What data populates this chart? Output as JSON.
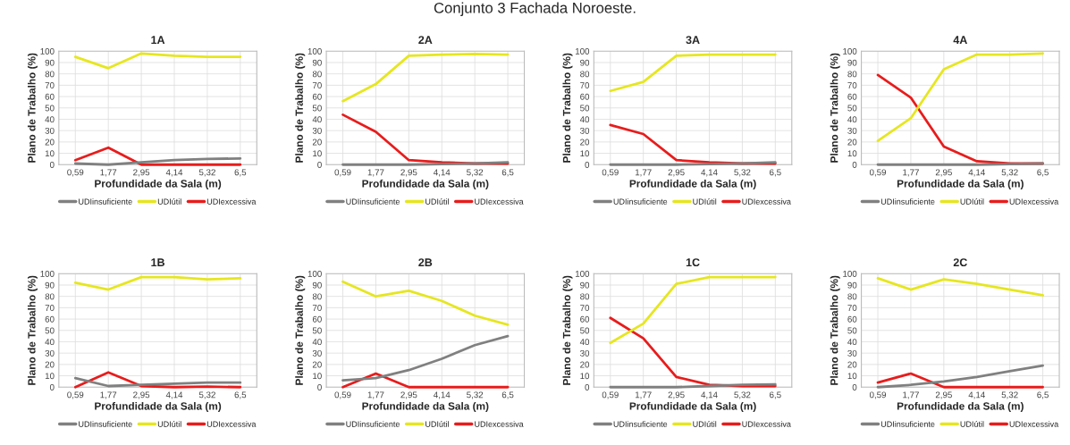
{
  "chart_data": [
    {
      "type": "line",
      "title": "1A",
      "xlabel": "Profundidade da Sala (m)",
      "ylabel": "Plano de Trabalho (%)",
      "annotations": [
        "Conjunto 3 Fachada Noroeste."
      ],
      "categories": [
        "0,59",
        "1,77",
        "2,95",
        "4,14",
        "5,32",
        "6,5"
      ],
      "ylim": [
        0,
        100
      ],
      "yticks": [
        0,
        10,
        20,
        30,
        40,
        50,
        60,
        70,
        80,
        90,
        100
      ],
      "grid": true,
      "legend": "bottom",
      "series": [
        {
          "name": "UDIinsuficiente",
          "color": "#808080",
          "values": [
            1,
            0,
            2,
            4,
            5,
            5.5
          ]
        },
        {
          "name": "UDIútil",
          "color": "#e6e620",
          "values": [
            95,
            85,
            98,
            96,
            95,
            95
          ]
        },
        {
          "name": "UDIexcessiva",
          "color": "#e81c1c",
          "values": [
            4,
            15,
            0,
            0,
            0,
            0
          ]
        }
      ]
    },
    {
      "type": "line",
      "title": "2A",
      "xlabel": "Profundidade da Sala (m)",
      "ylabel": "Plano de Trabalho (%)",
      "categories": [
        "0,59",
        "1,77",
        "2,95",
        "4,14",
        "5,32",
        "6,5"
      ],
      "ylim": [
        0,
        100
      ],
      "yticks": [
        0,
        10,
        20,
        30,
        40,
        50,
        60,
        70,
        80,
        90,
        100
      ],
      "grid": true,
      "legend": "bottom",
      "series": [
        {
          "name": "UDIinsuficiente",
          "color": "#808080",
          "values": [
            0,
            0,
            0,
            0.5,
            1,
            2
          ]
        },
        {
          "name": "UDIútil",
          "color": "#e6e620",
          "values": [
            56,
            71,
            96,
            97,
            97.5,
            97
          ]
        },
        {
          "name": "UDIexcessiva",
          "color": "#e81c1c",
          "values": [
            44,
            29,
            4,
            2,
            1,
            1
          ]
        }
      ]
    },
    {
      "type": "line",
      "title": "3A",
      "xlabel": "Profundidade da Sala (m)",
      "ylabel": "Plano de Trabalho (%)",
      "categories": [
        "0,59",
        "1,77",
        "2,95",
        "4,14",
        "5,32",
        "6,5"
      ],
      "ylim": [
        0,
        100
      ],
      "yticks": [
        0,
        10,
        20,
        30,
        40,
        50,
        60,
        70,
        80,
        90,
        100
      ],
      "grid": true,
      "legend": "bottom",
      "series": [
        {
          "name": "UDIinsuficiente",
          "color": "#808080",
          "values": [
            0,
            0,
            0,
            0.5,
            1,
            2
          ]
        },
        {
          "name": "UDIútil",
          "color": "#e6e620",
          "values": [
            65,
            73,
            96,
            97,
            97,
            97
          ]
        },
        {
          "name": "UDIexcessiva",
          "color": "#e81c1c",
          "values": [
            35,
            27,
            4,
            2,
            1,
            1
          ]
        }
      ]
    },
    {
      "type": "line",
      "title": "4A",
      "xlabel": "Profundidade da Sala (m)",
      "ylabel": "Plano de Trabalho (%)",
      "categories": [
        "0,59",
        "1,77",
        "2,95",
        "4,14",
        "5,32",
        "6,5"
      ],
      "ylim": [
        0,
        100
      ],
      "yticks": [
        0,
        10,
        20,
        30,
        40,
        50,
        60,
        70,
        80,
        90,
        100
      ],
      "grid": true,
      "legend": "bottom",
      "series": [
        {
          "name": "UDIinsuficiente",
          "color": "#808080",
          "values": [
            0,
            0,
            0,
            0,
            0.5,
            1
          ]
        },
        {
          "name": "UDIútil",
          "color": "#e6e620",
          "values": [
            21,
            41,
            84,
            97,
            97,
            98
          ]
        },
        {
          "name": "UDIexcessiva",
          "color": "#e81c1c",
          "values": [
            79,
            59,
            16,
            3,
            1,
            1
          ]
        }
      ]
    },
    {
      "type": "line",
      "title": "1B",
      "xlabel": "Profundidade da Sala (m)",
      "ylabel": "Plano de Trabalho (%)",
      "categories": [
        "0,59",
        "1,77",
        "2,95",
        "4,14",
        "5,32",
        "6,5"
      ],
      "ylim": [
        0,
        100
      ],
      "yticks": [
        0,
        10,
        20,
        30,
        40,
        50,
        60,
        70,
        80,
        90,
        100
      ],
      "grid": true,
      "legend": "bottom",
      "series": [
        {
          "name": "UDIinsuficiente",
          "color": "#808080",
          "values": [
            8,
            1,
            2,
            3,
            4,
            4
          ]
        },
        {
          "name": "UDIútil",
          "color": "#e6e620",
          "values": [
            92,
            86,
            97,
            97,
            95,
            96
          ]
        },
        {
          "name": "UDIexcessiva",
          "color": "#e81c1c",
          "values": [
            0,
            13,
            1,
            0,
            0.5,
            0
          ]
        }
      ]
    },
    {
      "type": "line",
      "title": "2B",
      "xlabel": "Profundidade da Sala (m)",
      "ylabel": "Plano de Trabalho (%)",
      "categories": [
        "0,59",
        "1,77",
        "2,95",
        "4,14",
        "5,32",
        "6,5"
      ],
      "ylim": [
        0,
        100
      ],
      "yticks": [
        0,
        10,
        20,
        30,
        40,
        50,
        60,
        70,
        80,
        90,
        100
      ],
      "grid": true,
      "legend": "bottom",
      "series": [
        {
          "name": "UDIinsuficiente",
          "color": "#808080",
          "values": [
            6,
            8,
            15,
            25,
            37,
            45
          ]
        },
        {
          "name": "UDIútil",
          "color": "#e6e620",
          "values": [
            93,
            80,
            85,
            76,
            63,
            55
          ]
        },
        {
          "name": "UDIexcessiva",
          "color": "#e81c1c",
          "values": [
            0,
            12,
            0,
            0,
            0,
            0
          ]
        }
      ]
    },
    {
      "type": "line",
      "title": "1C",
      "xlabel": "Profundidade da Sala (m)",
      "ylabel": "Plano de Trabalho (%)",
      "categories": [
        "0,59",
        "1,77",
        "2,95",
        "4,14",
        "5,32",
        "6,5"
      ],
      "ylim": [
        0,
        100
      ],
      "yticks": [
        0,
        10,
        20,
        30,
        40,
        50,
        60,
        70,
        80,
        90,
        100
      ],
      "grid": true,
      "legend": "bottom",
      "series": [
        {
          "name": "UDIinsuficiente",
          "color": "#808080",
          "values": [
            0,
            0,
            0,
            1,
            2,
            2.5
          ]
        },
        {
          "name": "UDIútil",
          "color": "#e6e620",
          "values": [
            39,
            56,
            91,
            97,
            97,
            97
          ]
        },
        {
          "name": "UDIexcessiva",
          "color": "#e81c1c",
          "values": [
            61,
            43,
            9,
            2,
            1,
            1
          ]
        }
      ]
    },
    {
      "type": "line",
      "title": "2C",
      "xlabel": "Profundidade da Sala (m)",
      "ylabel": "Plano de Trabalho (%)",
      "categories": [
        "0,59",
        "1,77",
        "2,95",
        "4,14",
        "5,32",
        "6,5"
      ],
      "ylim": [
        0,
        100
      ],
      "yticks": [
        0,
        10,
        20,
        30,
        40,
        50,
        60,
        70,
        80,
        90,
        100
      ],
      "grid": true,
      "legend": "bottom",
      "series": [
        {
          "name": "UDIinsuficiente",
          "color": "#808080",
          "values": [
            0,
            2,
            5,
            9,
            14,
            19
          ]
        },
        {
          "name": "UDIútil",
          "color": "#e6e620",
          "values": [
            96,
            86,
            95,
            91,
            86,
            81
          ]
        },
        {
          "name": "UDIexcessiva",
          "color": "#e81c1c",
          "values": [
            4,
            12,
            0,
            0,
            0,
            0
          ]
        }
      ]
    }
  ]
}
